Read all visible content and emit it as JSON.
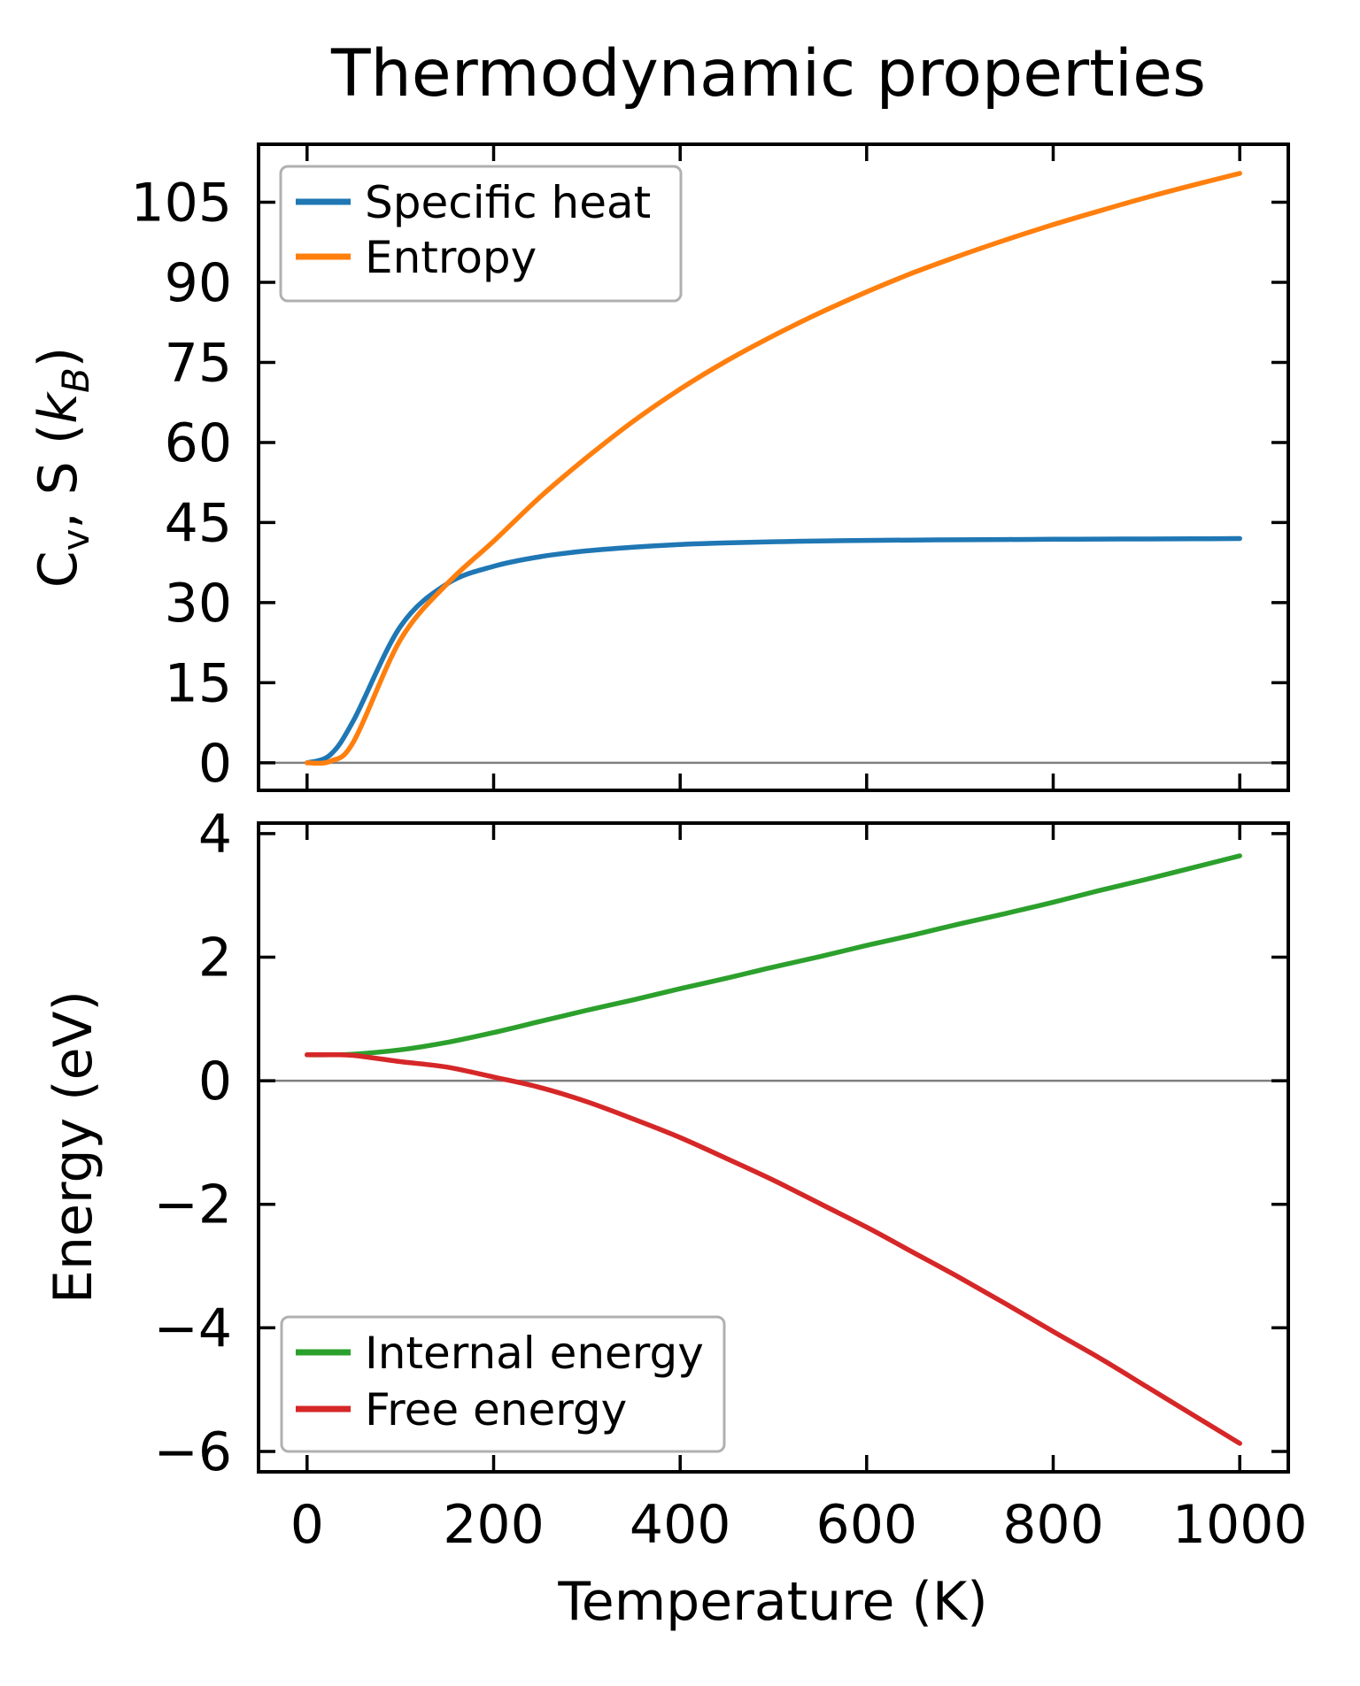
{
  "figure": {
    "background": "#ffffff",
    "text_color": "#000000",
    "spine_color": "#000000",
    "zero_line_color": "#7f7f7f",
    "legend_border_color": "#b0b0b0"
  },
  "chart_data": [
    {
      "type": "line",
      "title": "Thermodynamic properties",
      "ylabel": "Cv, S (kB)",
      "ylabel_parts": {
        "c": "C",
        "v": "v",
        "mid": ", S (",
        "k": "k",
        "b": "B",
        "close": ")"
      },
      "xlabel": "",
      "xlim": [
        -52,
        1052
      ],
      "ylim": [
        -5.16,
        115.86
      ],
      "xticks": [
        0,
        200,
        400,
        600,
        800,
        1000
      ],
      "yticks": [
        0,
        15,
        30,
        45,
        60,
        75,
        90,
        105
      ],
      "grid": false,
      "zero_line": true,
      "legend_position": "upper left",
      "x": [
        0,
        25,
        50,
        100,
        150,
        200,
        250,
        300,
        350,
        400,
        450,
        500,
        550,
        600,
        650,
        700,
        750,
        800,
        850,
        900,
        950,
        1000
      ],
      "series": [
        {
          "name": "Specific heat",
          "color": "#1f77b4",
          "values": [
            0,
            1.5,
            8,
            25.5,
            33.5,
            36.8,
            38.6,
            39.7,
            40.4,
            40.9,
            41.2,
            41.4,
            41.55,
            41.65,
            41.72,
            41.78,
            41.83,
            41.87,
            41.9,
            41.93,
            41.96,
            42
          ]
        },
        {
          "name": "Entropy",
          "color": "#ff7f0e",
          "values": [
            0,
            0.3,
            4,
            23,
            33.5,
            41.5,
            49.8,
            57.2,
            64,
            70,
            75.3,
            80,
            84.3,
            88.2,
            91.8,
            95,
            98,
            100.8,
            103.4,
            105.9,
            108.2,
            110.4
          ]
        }
      ]
    },
    {
      "type": "line",
      "title": "",
      "ylabel": "Energy (eV)",
      "xlabel": "Temperature (K)",
      "xlim": [
        -52,
        1052
      ],
      "ylim": [
        -6.33,
        4.17
      ],
      "xticks": [
        0,
        200,
        400,
        600,
        800,
        1000
      ],
      "yticks": [
        -6,
        -4,
        -2,
        0,
        2,
        4
      ],
      "grid": false,
      "zero_line": true,
      "legend_position": "lower left",
      "x": [
        0,
        25,
        50,
        100,
        150,
        200,
        250,
        300,
        350,
        400,
        450,
        500,
        550,
        600,
        650,
        700,
        750,
        800,
        850,
        900,
        950,
        1000
      ],
      "series": [
        {
          "name": "Internal energy",
          "color": "#2ca02c",
          "values": [
            0.42,
            0.42,
            0.43,
            0.5,
            0.62,
            0.78,
            0.96,
            1.14,
            1.31,
            1.49,
            1.66,
            1.84,
            2.01,
            2.19,
            2.36,
            2.54,
            2.71,
            2.89,
            3.08,
            3.26,
            3.45,
            3.64
          ]
        },
        {
          "name": "Free energy",
          "color": "#d62728",
          "values": [
            0.42,
            0.42,
            0.41,
            0.31,
            0.22,
            0.06,
            -0.11,
            -0.34,
            -0.62,
            -0.92,
            -1.26,
            -1.61,
            -1.99,
            -2.37,
            -2.78,
            -3.19,
            -3.62,
            -4.06,
            -4.49,
            -4.95,
            -5.41,
            -5.87
          ]
        }
      ]
    }
  ]
}
